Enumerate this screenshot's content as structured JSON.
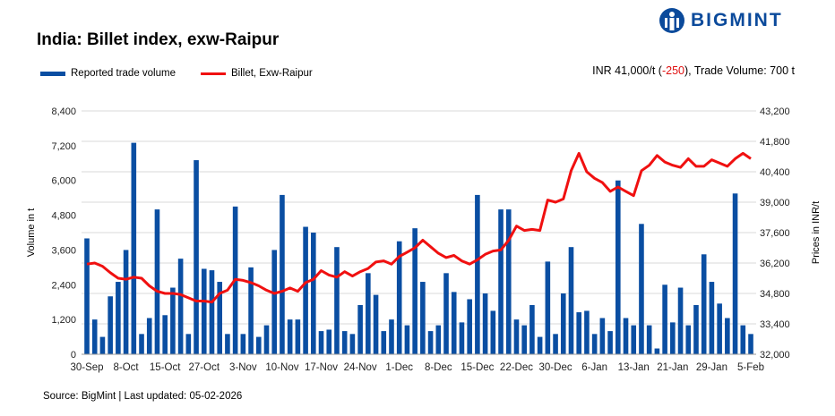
{
  "logo": {
    "text": "BIGMINT",
    "color": "#0b4a9b"
  },
  "summary": {
    "prefix": "INR 41,000/t (",
    "change": "-250",
    "suffix": "), Trade Volume: 700 t"
  },
  "source": "Source: BigMint | Last updated: 05-02-2026",
  "chart_data": {
    "type": "bar+line",
    "title": "India: Billet index, exw-Raipur",
    "ylabel": "Volume in t",
    "y2label": "Prices in INR/t",
    "ylim": [
      0,
      8400
    ],
    "y_ticks": [
      "0",
      "1,200",
      "2,400",
      "3,600",
      "4,800",
      "6,000",
      "7,200",
      "8,400"
    ],
    "y2lim": [
      32000,
      43200
    ],
    "y2_ticks": [
      "32,000",
      "33,400",
      "34,800",
      "36,200",
      "37,600",
      "39,000",
      "40,400",
      "41,800",
      "43,200"
    ],
    "x_tick_labels": [
      "30-Sep",
      "8-Oct",
      "15-Oct",
      "27-Oct",
      "3-Nov",
      "10-Nov",
      "17-Nov",
      "24-Nov",
      "1-Dec",
      "8-Dec",
      "15-Dec",
      "22-Dec",
      "30-Dec",
      "6-Jan",
      "13-Jan",
      "21-Jan",
      "29-Jan",
      "5-Feb"
    ],
    "grid": true,
    "legend_position": "top-left",
    "series": [
      {
        "name": "Reported trade volume",
        "type": "bar",
        "axis": "left",
        "color": "#0a4ea2",
        "values": [
          4000,
          1200,
          600,
          2000,
          2500,
          3600,
          7300,
          700,
          1250,
          5000,
          1350,
          2300,
          3300,
          700,
          6700,
          2950,
          2900,
          2500,
          700,
          5100,
          700,
          3000,
          600,
          1000,
          3600,
          5500,
          1200,
          1200,
          4400,
          4200,
          800,
          850,
          3700,
          800,
          700,
          1700,
          2800,
          2050,
          800,
          1200,
          3900,
          1000,
          4350,
          2500,
          800,
          1000,
          2800,
          2150,
          1100,
          1900,
          5500,
          2100,
          1500,
          5000,
          5000,
          1200,
          1000,
          1700,
          600,
          3200,
          700,
          2100,
          3700,
          1450,
          1500,
          700,
          1250,
          800,
          6000,
          1250,
          1000,
          4500,
          1000,
          200,
          2400,
          1100,
          2300,
          1000,
          1700,
          3450,
          2500,
          1750,
          1250,
          5550,
          1000,
          700
        ]
      },
      {
        "name": "Billet, Exw-Raipur",
        "type": "line",
        "axis": "right",
        "color": "#f01010",
        "values": [
          36150,
          36200,
          36050,
          35750,
          35500,
          35450,
          35550,
          35500,
          35150,
          34900,
          34800,
          34800,
          34750,
          34600,
          34450,
          34450,
          34400,
          34800,
          34950,
          35450,
          35400,
          35300,
          35150,
          34950,
          34800,
          34900,
          35050,
          34900,
          35300,
          35450,
          35850,
          35650,
          35550,
          35800,
          35600,
          35800,
          35950,
          36250,
          36300,
          36150,
          36500,
          36700,
          36900,
          37250,
          36950,
          36650,
          36450,
          36550,
          36300,
          36150,
          36350,
          36600,
          36750,
          36800,
          37250,
          37900,
          37700,
          37750,
          37700,
          39100,
          39000,
          39150,
          40450,
          41250,
          40400,
          40100,
          39900,
          39500,
          39700,
          39500,
          39300,
          40450,
          40700,
          41150,
          40850,
          40700,
          40600,
          41000,
          40650,
          40650,
          40950,
          40800,
          40650,
          41000,
          41250,
          41000
        ]
      }
    ]
  }
}
